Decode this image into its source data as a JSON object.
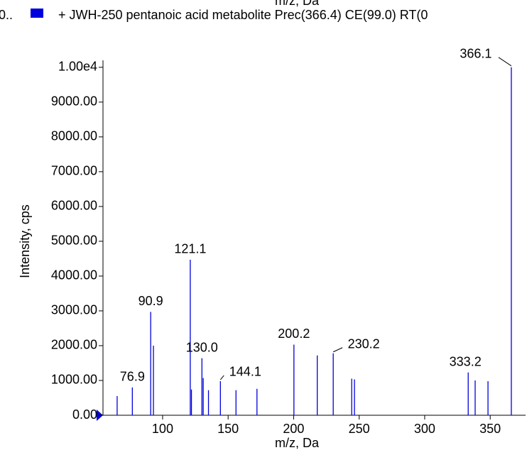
{
  "chart_data": {
    "type": "spectrum",
    "top_label": "m/z, Da",
    "legend_prefix": "0..",
    "series": [
      {
        "name": "+ JWH-250 pentanoic acid metabolite Prec(366.4) CE(99.0) RT(0",
        "color": "#0000dd",
        "x": [
          65.3,
          76.9,
          90.9,
          93,
          121.1,
          122,
          130.0,
          131,
          135,
          144.1,
          156,
          172,
          200.2,
          218,
          230.2,
          244.3,
          246.4,
          333.2,
          338.5,
          348.3,
          366.1
        ],
        "values": [
          550,
          800,
          2970,
          2000,
          4470,
          740,
          1640,
          1070,
          720,
          980,
          720,
          760,
          2030,
          1720,
          1780,
          1050,
          1030,
          1230,
          1000,
          980,
          10000
        ],
        "x_labels": [
          null,
          "76.9",
          "90.9",
          null,
          "121.1",
          null,
          "130.0",
          null,
          null,
          "144.1",
          null,
          null,
          "200.2",
          null,
          "230.2",
          null,
          null,
          "333.2",
          null,
          null,
          "366.1"
        ]
      }
    ],
    "xlabel": "m/z, Da",
    "ylabel": "Intensity, cps",
    "xlim": [
      54.5,
      377
    ],
    "xticks": [
      100,
      150,
      200,
      250,
      300,
      350
    ],
    "ylim": [
      0,
      10200
    ],
    "yticks": [
      {
        "value": 0,
        "label": "0.00"
      },
      {
        "value": 1000,
        "label": "1000.00"
      },
      {
        "value": 2000,
        "label": "2000.00"
      },
      {
        "value": 3000,
        "label": "3000.00"
      },
      {
        "value": 4000,
        "label": "4000.00"
      },
      {
        "value": 5000,
        "label": "5000.00"
      },
      {
        "value": 6000,
        "label": "6000.00"
      },
      {
        "value": 7000,
        "label": "7000.00"
      },
      {
        "value": 8000,
        "label": "8000.00"
      },
      {
        "value": 9000,
        "label": "9000.00"
      },
      {
        "value": 10000,
        "label": "1.00e4"
      }
    ]
  }
}
